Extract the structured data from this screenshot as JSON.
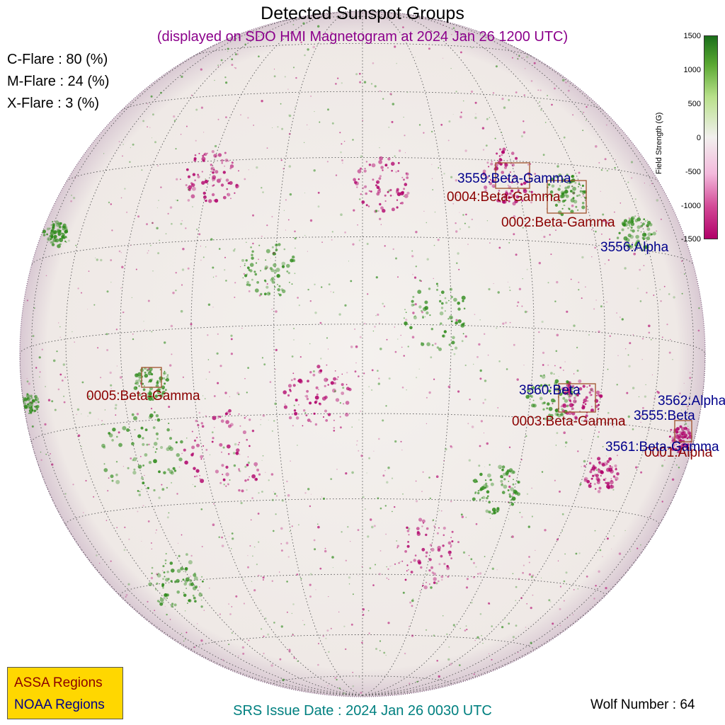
{
  "title": "Detected Sunspot Groups",
  "subtitle": "(displayed on SDO HMI Magnetogram at 2024 Jan 26 1200 UTC)",
  "flare_probabilities": [
    {
      "label": "C-Flare : 80 (%)"
    },
    {
      "label": "M-Flare : 24 (%)"
    },
    {
      "label": "X-Flare :  3 (%)"
    }
  ],
  "regions": {
    "noaa": [
      {
        "id": "3559",
        "text": "3559:Beta-Gamma"
      },
      {
        "id": "3556",
        "text": "3556:Alpha"
      },
      {
        "id": "3560",
        "text": "3560:Beta"
      },
      {
        "id": "3562",
        "text": "3562:Alpha"
      },
      {
        "id": "3555",
        "text": "3555:Beta"
      },
      {
        "id": "3561",
        "text": "3561:Beta-Gamma"
      }
    ],
    "assa": [
      {
        "id": "0004",
        "text": "0004:Beta-Gamma"
      },
      {
        "id": "0002",
        "text": "0002:Beta-Gamma"
      },
      {
        "id": "0005",
        "text": "0005:Beta-Gamma"
      },
      {
        "id": "0003",
        "text": "0003:Beta-Gamma"
      },
      {
        "id": "0001",
        "text": "0001:Alpha"
      }
    ]
  },
  "colorbar": {
    "title": "Field Strength (G)",
    "ticks": [
      "1500",
      "1000",
      "500",
      "0",
      "-500",
      "-1000",
      "-1500"
    ],
    "colors": {
      "positive": "#2d8a1a",
      "negative": "#b0006a",
      "zero": "#f2f0ee"
    }
  },
  "legend": {
    "assa": "ASSA Regions",
    "noaa": "NOAA Regions"
  },
  "footer": {
    "srs_issue": "SRS Issue Date : 2024 Jan 26 0030 UTC",
    "wolf_number": "Wolf Number : 64"
  }
}
